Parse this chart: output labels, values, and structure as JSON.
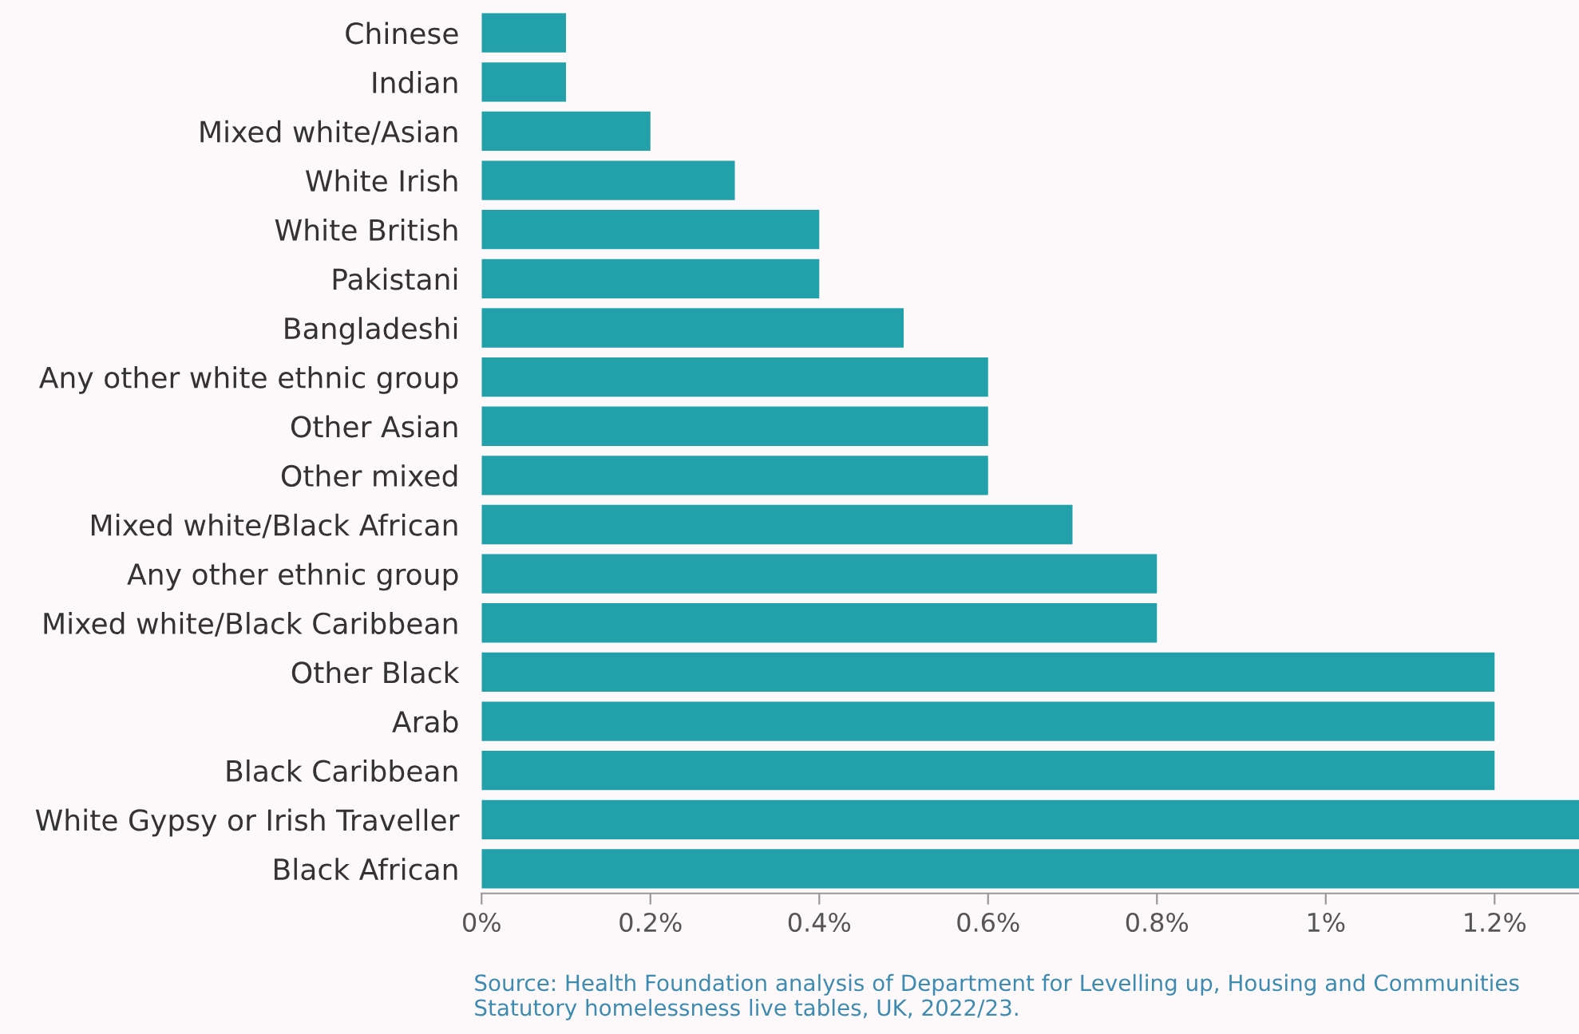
{
  "chart_data": {
    "type": "bar",
    "orientation": "horizontal",
    "categories": [
      "Chinese",
      "Indian",
      "Mixed white/Asian",
      "White Irish",
      "White British",
      "Pakistani",
      "Bangladeshi",
      "Any other white ethnic group",
      "Other Asian",
      "Other mixed",
      "Mixed white/Black African",
      "Any other ethnic group",
      "Mixed white/Black Caribbean",
      "Other Black",
      "Arab",
      "Black Caribbean",
      "White Gypsy or Irish Traveller",
      "Black African"
    ],
    "values": [
      0.1,
      0.1,
      0.2,
      0.3,
      0.4,
      0.4,
      0.5,
      0.6,
      0.6,
      0.6,
      0.7,
      0.8,
      0.8,
      1.2,
      1.2,
      1.2,
      1.3,
      1.3
    ],
    "color": "#23a1ab",
    "xlim": [
      0,
      1.3
    ],
    "xticks": [
      {
        "value": 0,
        "label": "0%"
      },
      {
        "value": 0.2,
        "label": "0.2%"
      },
      {
        "value": 0.4,
        "label": "0.4%"
      },
      {
        "value": 0.6,
        "label": "0.6%"
      },
      {
        "value": 0.8,
        "label": "0.8%"
      },
      {
        "value": 1,
        "label": "1%"
      },
      {
        "value": 1.2,
        "label": "1.2%"
      }
    ],
    "grid": false,
    "legend": false,
    "annotations": [
      "Source: Health Foundation analysis of Department for Levelling up, Housing and Communities Statutory homelessness live tables, UK, 2022/23."
    ]
  }
}
